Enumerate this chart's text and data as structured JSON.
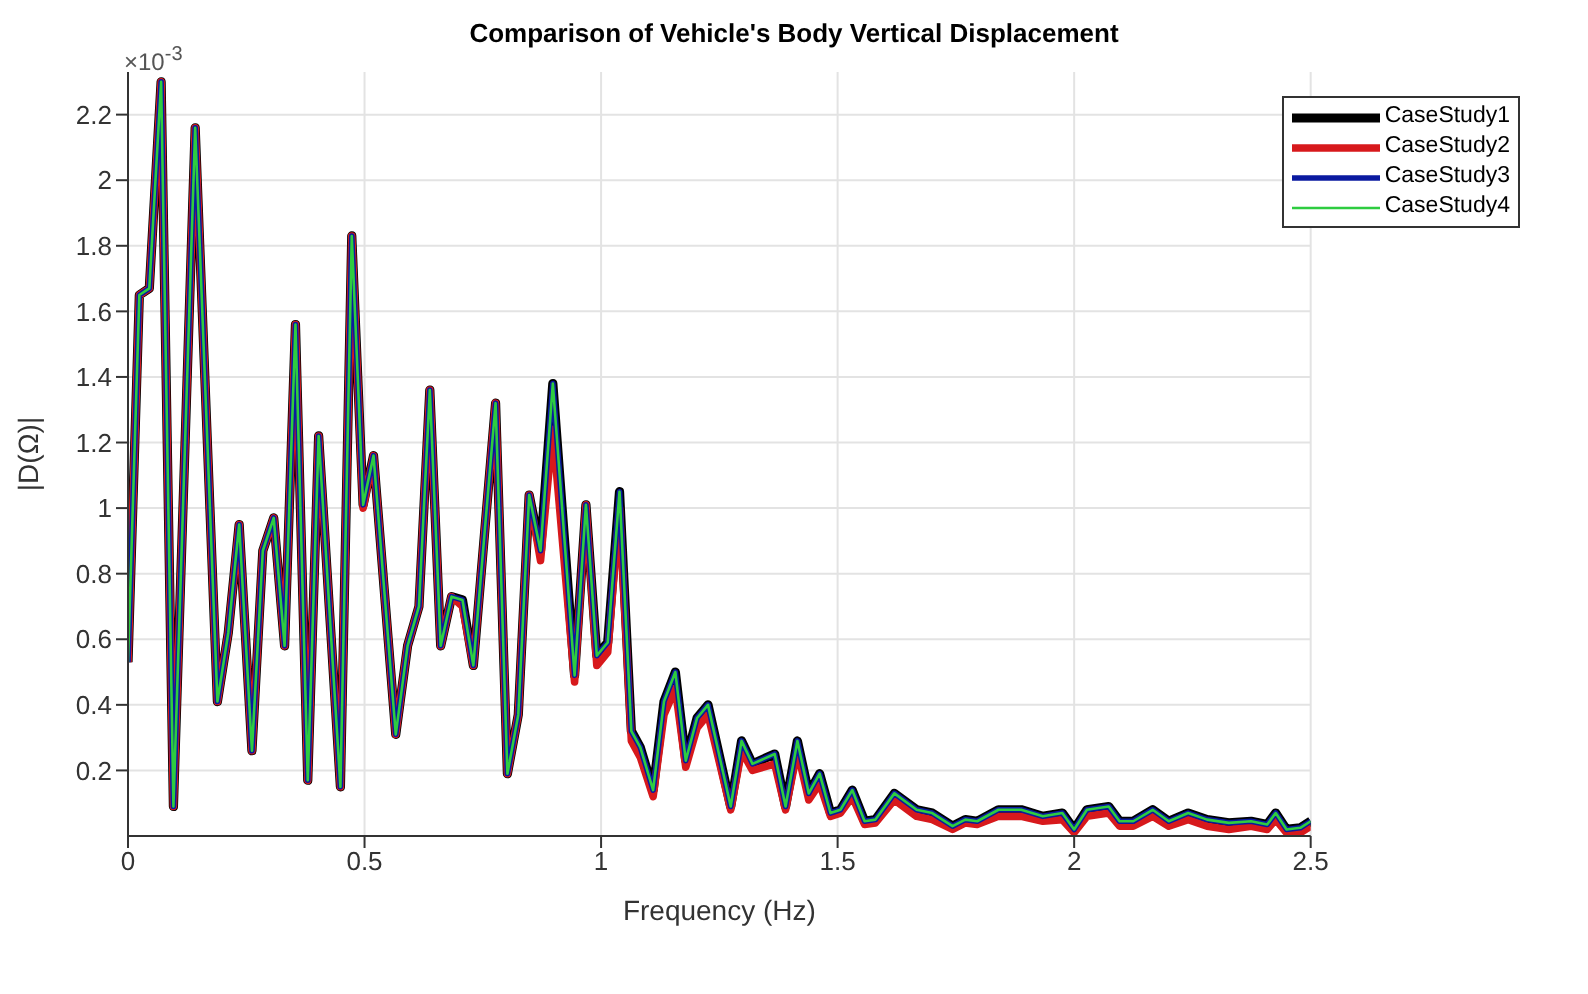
{
  "chart_data": {
    "type": "line",
    "title": "Comparison of Vehicle's Body Vertical Displacement",
    "xlabel": "Frequency (Hz)",
    "ylabel": "|D(Ω)|",
    "annotations": [
      "×10$^{-3}$"
    ],
    "x": [
      0,
      0.024,
      0.045,
      0.07,
      0.096,
      0.142,
      0.189,
      0.212,
      0.235,
      0.262,
      0.285,
      0.308,
      0.331,
      0.354,
      0.38,
      0.403,
      0.449,
      0.473,
      0.497,
      0.519,
      0.566,
      0.591,
      0.615,
      0.638,
      0.661,
      0.684,
      0.707,
      0.73,
      0.777,
      0.802,
      0.825,
      0.848,
      0.872,
      0.898,
      0.944,
      0.968,
      0.991,
      1.014,
      1.039,
      1.064,
      1.083,
      1.11,
      1.133,
      1.157,
      1.179,
      1.203,
      1.226,
      1.274,
      1.297,
      1.32,
      1.367,
      1.39,
      1.415,
      1.439,
      1.462,
      1.485,
      1.506,
      1.531,
      1.557,
      1.58,
      1.62,
      1.667,
      1.7,
      1.743,
      1.77,
      1.795,
      1.84,
      1.888,
      1.934,
      1.975,
      2.0,
      2.027,
      2.073,
      2.096,
      2.125,
      2.166,
      2.2,
      2.241,
      2.281,
      2.327,
      2.374,
      2.408,
      2.426,
      2.449,
      2.478,
      2.5
    ],
    "series": [
      {
        "name": "CaseStudy1",
        "color": "#000000",
        "values": [
          0.53,
          1.65,
          1.67,
          2.3,
          0.09,
          2.16,
          0.41,
          0.62,
          0.95,
          0.26,
          0.87,
          0.97,
          0.58,
          1.56,
          0.17,
          1.22,
          0.15,
          1.83,
          1.01,
          1.16,
          0.31,
          0.58,
          0.7,
          1.36,
          0.58,
          0.73,
          0.72,
          0.52,
          1.32,
          0.19,
          0.37,
          1.04,
          0.87,
          1.38,
          0.49,
          1.01,
          0.55,
          0.59,
          1.05,
          0.32,
          0.27,
          0.14,
          0.41,
          0.5,
          0.23,
          0.36,
          0.4,
          0.09,
          0.29,
          0.22,
          0.25,
          0.09,
          0.29,
          0.13,
          0.19,
          0.07,
          0.08,
          0.14,
          0.045,
          0.05,
          0.13,
          0.08,
          0.07,
          0.03,
          0.05,
          0.045,
          0.08,
          0.08,
          0.06,
          0.07,
          0.02,
          0.08,
          0.09,
          0.045,
          0.045,
          0.08,
          0.045,
          0.07,
          0.05,
          0.04,
          0.045,
          0.035,
          0.07,
          0.02,
          0.025,
          0.045
        ]
      },
      {
        "name": "CaseStudy2",
        "color": "#d7191c",
        "values": [
          0.53,
          1.65,
          1.67,
          2.3,
          0.09,
          2.16,
          0.41,
          0.62,
          0.95,
          0.26,
          0.87,
          0.97,
          0.58,
          1.56,
          0.17,
          1.22,
          0.15,
          1.83,
          1.0,
          1.16,
          0.31,
          0.58,
          0.7,
          1.36,
          0.58,
          0.73,
          0.7,
          0.52,
          1.32,
          0.19,
          0.37,
          1.04,
          0.84,
          1.24,
          0.47,
          1.01,
          0.52,
          0.56,
          1.0,
          0.29,
          0.24,
          0.12,
          0.37,
          0.45,
          0.21,
          0.33,
          0.37,
          0.08,
          0.26,
          0.2,
          0.22,
          0.08,
          0.26,
          0.11,
          0.16,
          0.06,
          0.07,
          0.12,
          0.035,
          0.04,
          0.11,
          0.06,
          0.05,
          0.02,
          0.04,
          0.035,
          0.06,
          0.06,
          0.045,
          0.05,
          0.01,
          0.06,
          0.07,
          0.03,
          0.03,
          0.06,
          0.03,
          0.05,
          0.03,
          0.02,
          0.03,
          0.02,
          0.05,
          0.01,
          0.01,
          0.03
        ]
      },
      {
        "name": "CaseStudy3",
        "color": "#0a1aa0",
        "values": [
          0.53,
          1.65,
          1.67,
          2.3,
          0.09,
          2.16,
          0.41,
          0.62,
          0.95,
          0.26,
          0.87,
          0.97,
          0.58,
          1.56,
          0.17,
          1.22,
          0.15,
          1.83,
          1.01,
          1.16,
          0.31,
          0.58,
          0.7,
          1.36,
          0.58,
          0.73,
          0.72,
          0.52,
          1.32,
          0.19,
          0.37,
          1.04,
          0.87,
          1.38,
          0.49,
          1.01,
          0.55,
          0.59,
          1.05,
          0.32,
          0.27,
          0.14,
          0.41,
          0.5,
          0.23,
          0.36,
          0.4,
          0.09,
          0.29,
          0.22,
          0.25,
          0.09,
          0.29,
          0.13,
          0.19,
          0.07,
          0.08,
          0.14,
          0.045,
          0.05,
          0.13,
          0.08,
          0.07,
          0.03,
          0.05,
          0.045,
          0.08,
          0.08,
          0.06,
          0.07,
          0.02,
          0.08,
          0.09,
          0.045,
          0.045,
          0.08,
          0.045,
          0.07,
          0.05,
          0.04,
          0.045,
          0.035,
          0.07,
          0.02,
          0.025,
          0.045
        ]
      },
      {
        "name": "CaseStudy4",
        "color": "#2ecc40",
        "values": [
          0.53,
          1.65,
          1.67,
          2.3,
          0.09,
          2.16,
          0.41,
          0.62,
          0.95,
          0.26,
          0.87,
          0.97,
          0.58,
          1.56,
          0.17,
          1.22,
          0.15,
          1.83,
          1.01,
          1.16,
          0.31,
          0.58,
          0.7,
          1.36,
          0.58,
          0.73,
          0.72,
          0.52,
          1.32,
          0.19,
          0.37,
          1.04,
          0.87,
          1.38,
          0.49,
          1.01,
          0.55,
          0.59,
          1.05,
          0.32,
          0.27,
          0.14,
          0.41,
          0.5,
          0.23,
          0.36,
          0.4,
          0.09,
          0.29,
          0.22,
          0.25,
          0.09,
          0.29,
          0.13,
          0.19,
          0.07,
          0.08,
          0.14,
          0.045,
          0.05,
          0.13,
          0.08,
          0.07,
          0.03,
          0.05,
          0.045,
          0.08,
          0.08,
          0.06,
          0.07,
          0.02,
          0.08,
          0.09,
          0.045,
          0.045,
          0.08,
          0.045,
          0.07,
          0.05,
          0.04,
          0.045,
          0.035,
          0.07,
          0.02,
          0.025,
          0.045
        ]
      }
    ],
    "xlim": [
      0,
      2.5
    ],
    "xticks": [
      0,
      0.5,
      1,
      1.5,
      2,
      2.5
    ],
    "ylim": [
      0,
      2.33
    ],
    "yticks": [
      0.2,
      0.4,
      0.6,
      0.8,
      1,
      1.2,
      1.4,
      1.6,
      1.8,
      2,
      2.2
    ],
    "grid": true,
    "legend": "top right",
    "line_style": "solid",
    "marker": "none"
  }
}
